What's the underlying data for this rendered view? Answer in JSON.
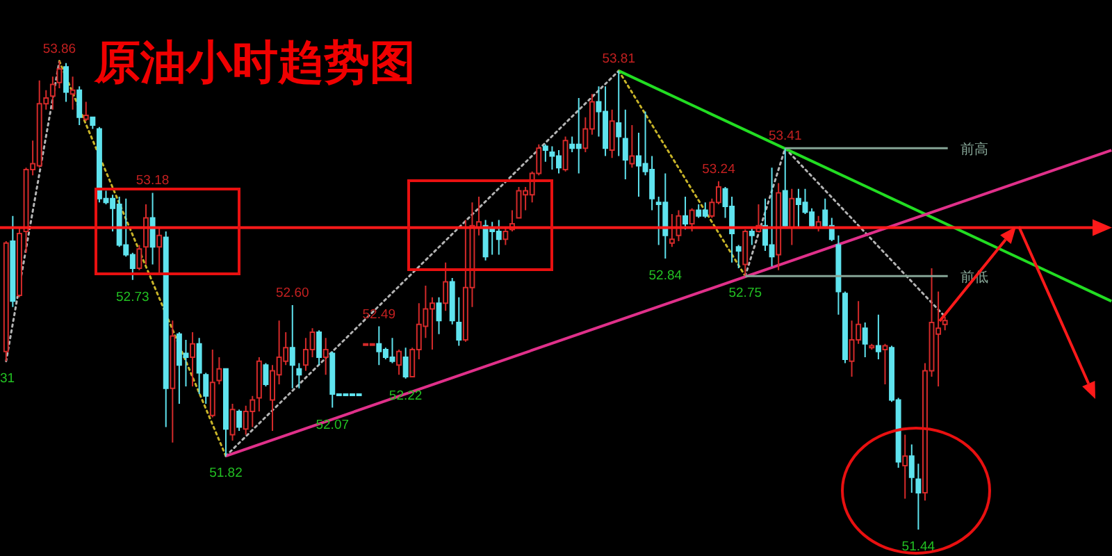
{
  "chart_data": {
    "type": "candlestick",
    "title": "原油小时趋势图",
    "categories": [
      null,
      null,
      null,
      null,
      null,
      null,
      null,
      null,
      null,
      null,
      null,
      null,
      null,
      null,
      null,
      null,
      null,
      null,
      null,
      null,
      null,
      null,
      null,
      null,
      null,
      null,
      null,
      null,
      null,
      null,
      null,
      null,
      null,
      null,
      null,
      null,
      null,
      null,
      null,
      null,
      null,
      null,
      null,
      null,
      null,
      null,
      null,
      null,
      null,
      null,
      null,
      null,
      null,
      null,
      null,
      null,
      null,
      null,
      null,
      null,
      null,
      null,
      null,
      null,
      null,
      null,
      null,
      null,
      null,
      null,
      null,
      null,
      null,
      null,
      null,
      null,
      null,
      null,
      null,
      null,
      null,
      null,
      null,
      null,
      null,
      null,
      null,
      null,
      null,
      null,
      null,
      null,
      null,
      null,
      null,
      null,
      null,
      null,
      null,
      null,
      null,
      null,
      null,
      null,
      null,
      null,
      null,
      null,
      null,
      null,
      null,
      null,
      null,
      null,
      null,
      null,
      null,
      null,
      null,
      null,
      null,
      null,
      null,
      null,
      null,
      null,
      null,
      null,
      null,
      null,
      null,
      null,
      null,
      null,
      null,
      null,
      null,
      null,
      null,
      null,
      null,
      null,
      null,
      null,
      null,
      null,
      null,
      null,
      null,
      null,
      null,
      null,
      null,
      null,
      null,
      null,
      null,
      null,
      null,
      null,
      null,
      null,
      null,
      null,
      null,
      null,
      null
    ],
    "ohlc": [
      [
        52.36,
        52.93,
        52.31,
        52.92
      ],
      [
        52.93,
        53.06,
        52.59,
        52.62
      ],
      [
        52.65,
        53.0,
        52.64,
        52.97
      ],
      [
        52.98,
        53.31,
        52.87,
        53.3
      ],
      [
        53.3,
        53.45,
        53.27,
        53.33
      ],
      [
        53.32,
        53.76,
        53.31,
        53.64
      ],
      [
        53.64,
        53.71,
        53.61,
        53.67
      ],
      [
        53.68,
        53.78,
        53.61,
        53.74
      ],
      [
        53.75,
        53.86,
        53.72,
        53.82
      ],
      [
        53.83,
        53.85,
        53.65,
        53.7
      ],
      [
        53.69,
        53.78,
        53.61,
        53.71
      ],
      [
        53.71,
        53.73,
        53.53,
        53.57
      ],
      [
        53.56,
        53.65,
        53.55,
        53.58
      ],
      [
        53.57,
        53.57,
        53.51,
        53.53
      ],
      [
        53.51,
        53.52,
        53.13,
        53.15
      ],
      [
        53.15,
        53.19,
        53.12,
        53.13
      ],
      [
        53.15,
        53.17,
        52.98,
        53.1
      ],
      [
        53.12,
        53.16,
        52.9,
        52.91
      ],
      [
        52.91,
        53.15,
        52.85,
        52.86
      ],
      [
        52.86,
        52.87,
        52.73,
        52.79
      ],
      [
        52.79,
        52.91,
        52.78,
        52.89
      ],
      [
        52.9,
        53.12,
        52.81,
        53.05
      ],
      [
        53.05,
        53.18,
        52.81,
        52.9
      ],
      [
        52.9,
        53.0,
        52.76,
        52.96
      ],
      [
        52.95,
        52.98,
        51.97,
        52.17
      ],
      [
        52.17,
        52.52,
        51.89,
        52.44
      ],
      [
        52.45,
        52.46,
        52.09,
        52.29
      ],
      [
        52.35,
        52.42,
        52.18,
        52.33
      ],
      [
        52.33,
        52.46,
        52.18,
        52.4
      ],
      [
        52.4,
        52.43,
        52.14,
        52.25
      ],
      [
        52.24,
        52.25,
        52.09,
        52.13
      ],
      [
        52.03,
        52.37,
        52.02,
        52.2
      ],
      [
        52.21,
        52.33,
        52.19,
        52.27
      ],
      [
        52.27,
        52.27,
        51.82,
        51.96
      ],
      [
        51.93,
        52.09,
        51.9,
        52.06
      ],
      [
        52.05,
        52.06,
        51.95,
        51.97
      ],
      [
        51.96,
        52.08,
        51.93,
        52.05
      ],
      [
        52.05,
        52.13,
        51.97,
        52.11
      ],
      [
        52.12,
        52.33,
        52.05,
        52.31
      ],
      [
        52.29,
        52.3,
        52.18,
        52.19
      ],
      [
        52.11,
        52.29,
        51.95,
        52.26
      ],
      [
        52.24,
        52.52,
        52.19,
        52.33
      ],
      [
        52.31,
        52.46,
        52.29,
        52.38
      ],
      [
        52.38,
        52.6,
        52.17,
        52.29
      ],
      [
        52.27,
        52.3,
        52.17,
        52.24
      ],
      [
        52.29,
        52.43,
        52.26,
        52.37
      ],
      [
        52.37,
        52.48,
        52.33,
        52.46
      ],
      [
        52.46,
        52.47,
        52.29,
        52.33
      ],
      [
        52.33,
        52.43,
        52.24,
        52.37
      ],
      [
        52.35,
        52.36,
        52.07,
        52.14
      ],
      [
        52.14,
        52.14,
        52.14,
        52.14
      ],
      [
        52.14,
        52.14,
        52.14,
        52.14
      ],
      [
        52.14,
        52.14,
        52.14,
        52.14
      ],
      [
        52.14,
        52.14,
        52.14,
        52.14
      ],
      [
        52.4,
        52.4,
        52.4,
        52.4
      ],
      [
        52.4,
        52.4,
        52.4,
        52.4
      ],
      [
        52.4,
        52.49,
        52.29,
        52.36
      ],
      [
        52.37,
        52.38,
        52.32,
        52.33
      ],
      [
        52.33,
        52.43,
        52.3,
        52.31
      ],
      [
        52.29,
        52.37,
        52.24,
        52.36
      ],
      [
        52.33,
        52.38,
        52.22,
        52.23
      ],
      [
        52.23,
        52.38,
        52.23,
        52.37
      ],
      [
        52.37,
        52.61,
        52.32,
        52.5
      ],
      [
        52.49,
        52.7,
        52.43,
        52.58
      ],
      [
        52.58,
        52.64,
        52.37,
        52.61
      ],
      [
        52.61,
        52.64,
        52.45,
        52.52
      ],
      [
        52.61,
        52.82,
        52.57,
        52.72
      ],
      [
        52.72,
        52.74,
        52.5,
        52.52
      ],
      [
        52.51,
        52.64,
        52.39,
        52.42
      ],
      [
        52.42,
        53.04,
        52.41,
        52.69
      ],
      [
        52.69,
        53.13,
        52.59,
        53.01
      ],
      [
        53.0,
        53.16,
        52.96,
        53.03
      ],
      [
        53.01,
        53.04,
        52.83,
        52.85
      ],
      [
        53.0,
        53.03,
        52.86,
        52.98
      ],
      [
        52.98,
        53.04,
        52.86,
        52.94
      ],
      [
        52.94,
        53.0,
        52.91,
        52.98
      ],
      [
        52.99,
        53.09,
        52.98,
        53.02
      ],
      [
        53.05,
        53.21,
        53.05,
        53.19
      ],
      [
        53.17,
        53.21,
        53.09,
        53.19
      ],
      [
        53.17,
        53.29,
        53.13,
        53.28
      ],
      [
        53.28,
        53.43,
        53.27,
        53.41
      ],
      [
        53.42,
        53.43,
        53.34,
        53.4
      ],
      [
        53.39,
        53.42,
        53.3,
        53.37
      ],
      [
        53.37,
        53.4,
        53.28,
        53.31
      ],
      [
        53.3,
        53.47,
        53.29,
        53.45
      ],
      [
        53.43,
        53.47,
        53.39,
        53.41
      ],
      [
        53.43,
        53.67,
        53.28,
        53.41
      ],
      [
        53.41,
        53.57,
        53.39,
        53.51
      ],
      [
        53.51,
        53.69,
        53.48,
        53.65
      ],
      [
        53.65,
        53.73,
        53.47,
        53.6
      ],
      [
        53.6,
        53.73,
        53.37,
        53.41
      ],
      [
        53.4,
        53.61,
        53.36,
        53.55
      ],
      [
        53.54,
        53.81,
        53.37,
        53.47
      ],
      [
        53.46,
        53.61,
        53.25,
        53.35
      ],
      [
        53.33,
        53.53,
        53.31,
        53.37
      ],
      [
        53.37,
        53.49,
        53.16,
        53.32
      ],
      [
        53.33,
        53.6,
        53.27,
        53.29
      ],
      [
        53.3,
        53.37,
        53.09,
        53.15
      ],
      [
        53.13,
        53.16,
        52.91,
        53.12
      ],
      [
        53.13,
        53.28,
        52.84,
        52.96
      ],
      [
        52.92,
        53.07,
        52.9,
        52.94
      ],
      [
        52.96,
        53.09,
        52.93,
        53.06
      ],
      [
        53.06,
        53.16,
        52.99,
        53.02
      ],
      [
        53.02,
        53.1,
        52.98,
        53.09
      ],
      [
        53.09,
        53.12,
        53.05,
        53.06
      ],
      [
        53.09,
        53.13,
        53.05,
        53.06
      ],
      [
        53.06,
        53.15,
        53.05,
        53.13
      ],
      [
        53.13,
        53.24,
        53.12,
        53.21
      ],
      [
        53.2,
        53.21,
        53.05,
        53.11
      ],
      [
        53.11,
        53.16,
        52.82,
        52.97
      ],
      [
        52.9,
        52.91,
        52.79,
        52.88
      ],
      [
        52.81,
        52.99,
        52.75,
        52.98
      ],
      [
        52.98,
        53.0,
        52.91,
        52.96
      ],
      [
        52.98,
        53.12,
        52.98,
        53.01
      ],
      [
        53.01,
        53.15,
        52.88,
        52.91
      ],
      [
        52.91,
        53.31,
        52.8,
        52.85
      ],
      [
        52.86,
        53.23,
        52.78,
        53.18
      ],
      [
        53.19,
        53.41,
        53.0,
        53.01
      ],
      [
        53.0,
        53.2,
        52.91,
        53.15
      ],
      [
        53.15,
        53.2,
        53.0,
        53.12
      ],
      [
        53.13,
        53.2,
        53.07,
        53.08
      ],
      [
        53.08,
        53.1,
        53.0,
        53.01
      ],
      [
        53.0,
        53.06,
        52.98,
        53.03
      ],
      [
        53.09,
        53.15,
        53.0,
        53.01
      ],
      [
        53.01,
        53.05,
        52.93,
        52.94
      ],
      [
        52.91,
        52.96,
        52.55,
        52.67
      ],
      [
        52.66,
        52.67,
        52.3,
        52.32
      ],
      [
        52.31,
        52.52,
        52.23,
        52.42
      ],
      [
        52.42,
        52.62,
        52.4,
        52.5
      ],
      [
        52.48,
        52.51,
        52.33,
        52.4
      ],
      [
        52.38,
        52.4,
        52.37,
        52.39
      ],
      [
        52.39,
        52.55,
        52.32,
        52.36
      ],
      [
        52.37,
        52.4,
        52.19,
        52.39
      ],
      [
        52.38,
        52.39,
        52.1,
        52.11
      ],
      [
        52.11,
        52.12,
        51.76,
        51.79
      ],
      [
        51.77,
        51.93,
        51.6,
        51.82
      ],
      [
        51.82,
        51.88,
        51.63,
        51.71
      ],
      [
        51.7,
        51.78,
        51.44,
        51.63
      ],
      [
        51.63,
        52.3,
        51.59,
        52.26
      ],
      [
        52.26,
        52.79,
        52.23,
        52.51
      ],
      [
        52.45,
        52.67,
        52.18,
        52.48
      ],
      [
        52.5,
        52.54,
        52.47,
        52.52
      ],
      null,
      null,
      null,
      null,
      null,
      null,
      null,
      null,
      null,
      null,
      null,
      null,
      null,
      null,
      null,
      null,
      null,
      null,
      null,
      null,
      null,
      null,
      null,
      null,
      null
    ],
    "colors": [
      "#d42a2a",
      "#5fe3ee",
      "#d42a2a",
      "#d42a2a",
      "#d42a2a",
      "#d42a2a",
      "#d42a2a",
      "#d42a2a",
      "#d42a2a",
      "#5fe3ee",
      "#d42a2a",
      "#5fe3ee",
      "#d42a2a",
      "#5fe3ee",
      "#5fe3ee",
      "#5fe3ee",
      "#5fe3ee",
      "#5fe3ee",
      "#5fe3ee",
      "#5fe3ee",
      "#d42a2a",
      "#d42a2a",
      "#5fe3ee",
      "#d42a2a",
      "#5fe3ee",
      "#d42a2a",
      "#5fe3ee",
      "#5fe3ee",
      "#d42a2a",
      "#5fe3ee",
      "#5fe3ee",
      "#d42a2a",
      "#d42a2a",
      "#5fe3ee",
      "#d42a2a",
      "#5fe3ee",
      "#d42a2a",
      "#d42a2a",
      "#d42a2a",
      "#5fe3ee",
      "#d42a2a",
      "#d42a2a",
      "#d42a2a",
      "#5fe3ee",
      "#5fe3ee",
      "#d42a2a",
      "#d42a2a",
      "#5fe3ee",
      "#d42a2a",
      "#5fe3ee",
      "#5fe3ee",
      "#5fe3ee",
      "#5fe3ee",
      "#5fe3ee",
      "#d42a2a",
      "#d42a2a",
      "#5fe3ee",
      "#5fe3ee",
      "#5fe3ee",
      "#d42a2a",
      "#5fe3ee",
      "#d42a2a",
      "#d42a2a",
      "#d42a2a",
      "#d42a2a",
      "#5fe3ee",
      "#d42a2a",
      "#5fe3ee",
      "#5fe3ee",
      "#d42a2a",
      "#d42a2a",
      "#d42a2a",
      "#5fe3ee",
      "#5fe3ee",
      "#5fe3ee",
      "#d42a2a",
      "#d42a2a",
      "#d42a2a",
      "#d42a2a",
      "#d42a2a",
      "#d42a2a",
      "#5fe3ee",
      "#5fe3ee",
      "#5fe3ee",
      "#d42a2a",
      "#5fe3ee",
      "#5fe3ee",
      "#d42a2a",
      "#d42a2a",
      "#5fe3ee",
      "#5fe3ee",
      "#d42a2a",
      "#5fe3ee",
      "#5fe3ee",
      "#d42a2a",
      "#5fe3ee",
      "#5fe3ee",
      "#5fe3ee",
      "#5fe3ee",
      "#5fe3ee",
      "#d42a2a",
      "#d42a2a",
      "#5fe3ee",
      "#d42a2a",
      "#5fe3ee",
      "#5fe3ee",
      "#d42a2a",
      "#d42a2a",
      "#5fe3ee",
      "#5fe3ee",
      "#5fe3ee",
      "#d42a2a",
      "#5fe3ee",
      "#d42a2a",
      "#5fe3ee",
      "#5fe3ee",
      "#d42a2a",
      "#5fe3ee",
      "#d42a2a",
      "#5fe3ee",
      "#5fe3ee",
      "#5fe3ee",
      "#d42a2a",
      "#5fe3ee",
      "#5fe3ee",
      "#5fe3ee",
      "#5fe3ee",
      "#d42a2a",
      "#d42a2a",
      "#5fe3ee",
      "#d42a2a",
      "#5fe3ee",
      "#d42a2a",
      "#5fe3ee",
      "#5fe3ee",
      "#d42a2a",
      "#5fe3ee",
      "#5fe3ee",
      "#d42a2a",
      "#d42a2a",
      "#d42a2a",
      "#d42a2a",
      null,
      null,
      null,
      null,
      null,
      null,
      null,
      null,
      null,
      null,
      null,
      null,
      null,
      null,
      null,
      null,
      null,
      null,
      null,
      null,
      null,
      null,
      null,
      null,
      null
    ],
    "series": [
      {
        "type": "line",
        "color": "#b4b4b4",
        "line_style": "dotted",
        "values": [
          52.31,
          null,
          null,
          null,
          null,
          null,
          null,
          null,
          53.86,
          null,
          null,
          null,
          null,
          null,
          null,
          null,
          null,
          null,
          null,
          null,
          null,
          null,
          null,
          null,
          null,
          null,
          null,
          null,
          null,
          null,
          null,
          null,
          null,
          null,
          null,
          null,
          null,
          null,
          null,
          null,
          null,
          null,
          null,
          null,
          null,
          null,
          null,
          null,
          null,
          null,
          null,
          null,
          null,
          null,
          null,
          null,
          null,
          null,
          null,
          null,
          null,
          null,
          null,
          null,
          null,
          null,
          null,
          null,
          null,
          null,
          null,
          null,
          null,
          null,
          null,
          null,
          null,
          null,
          null,
          null,
          null,
          null,
          null,
          null,
          null,
          null,
          null,
          null,
          null,
          null,
          null,
          null,
          null,
          null,
          null,
          null,
          null,
          null,
          null,
          null,
          null,
          null,
          null,
          null,
          null,
          null,
          null,
          null,
          null,
          null,
          null,
          null,
          null,
          null,
          null,
          null,
          null,
          null,
          null,
          null,
          null,
          null,
          null,
          null,
          null,
          null,
          null,
          null,
          null,
          null,
          null,
          null,
          null,
          null,
          null,
          null,
          null,
          null,
          null,
          null,
          null,
          null,
          null,
          null,
          null,
          null,
          null,
          null,
          null,
          null,
          null,
          null,
          null,
          null,
          null,
          null,
          null,
          null,
          null,
          null,
          null,
          null,
          null,
          null,
          null,
          null,
          null
        ]
      },
      {
        "type": "line",
        "color": "#c8b428",
        "line_style": "dotted",
        "values": [
          null,
          null,
          null,
          null,
          null,
          null,
          null,
          null,
          53.86,
          null,
          null,
          null,
          null,
          null,
          null,
          null,
          null,
          null,
          null,
          null,
          null,
          null,
          null,
          null,
          null,
          null,
          null,
          null,
          null,
          null,
          null,
          null,
          null,
          51.82,
          null,
          null,
          null,
          null,
          null,
          null,
          null,
          null,
          null,
          null,
          null,
          null,
          null,
          null,
          null,
          null,
          null,
          null,
          null,
          null,
          null,
          null,
          null,
          null,
          null,
          null,
          null,
          null,
          null,
          null,
          null,
          null,
          null,
          null,
          null,
          null,
          null,
          null,
          null,
          null,
          null,
          null,
          null,
          null,
          null,
          null,
          null,
          null,
          null,
          null,
          null,
          null,
          null,
          null,
          null,
          null,
          null,
          null,
          null,
          null,
          null,
          null,
          null,
          null,
          null,
          null,
          null,
          null,
          null,
          null,
          null,
          null,
          null,
          null,
          null,
          null,
          null,
          null,
          null,
          null,
          null,
          null,
          null,
          null,
          null,
          null,
          null,
          null,
          null,
          null,
          null,
          null,
          null,
          null,
          null,
          null,
          null,
          null,
          null,
          null,
          null,
          null,
          null,
          null,
          null,
          null,
          null,
          null,
          null,
          null,
          null,
          null,
          null,
          null,
          null,
          null,
          null,
          null,
          null,
          null,
          null,
          null,
          null,
          null,
          null,
          null,
          null,
          null,
          null,
          null,
          null,
          null,
          null
        ]
      },
      {
        "type": "line",
        "color": "#b4b4b4",
        "line_style": "dotted",
        "values": [
          null,
          null,
          null,
          null,
          null,
          null,
          null,
          null,
          null,
          null,
          null,
          null,
          null,
          null,
          null,
          null,
          null,
          null,
          null,
          null,
          null,
          null,
          null,
          null,
          null,
          null,
          null,
          null,
          null,
          null,
          null,
          null,
          null,
          51.82,
          null,
          null,
          null,
          null,
          null,
          null,
          null,
          null,
          null,
          null,
          null,
          null,
          null,
          null,
          null,
          null,
          null,
          null,
          null,
          null,
          null,
          null,
          null,
          null,
          null,
          null,
          null,
          null,
          null,
          null,
          null,
          null,
          null,
          null,
          null,
          null,
          null,
          null,
          null,
          null,
          null,
          null,
          null,
          null,
          null,
          null,
          null,
          null,
          null,
          null,
          null,
          null,
          null,
          null,
          null,
          null,
          null,
          null,
          53.81,
          null,
          null,
          null,
          null,
          null,
          null,
          null,
          null,
          null,
          null,
          null,
          null,
          null,
          null,
          null,
          null,
          null,
          null,
          null,
          null,
          null,
          null,
          null,
          null,
          null,
          null,
          null,
          null,
          null,
          null,
          null,
          null,
          null,
          null,
          null,
          null,
          null,
          null,
          null,
          null,
          null,
          null,
          null,
          null,
          null,
          null,
          null,
          null,
          null,
          null,
          null,
          null,
          null,
          null,
          null,
          null,
          null,
          null,
          null,
          null,
          null,
          null,
          null,
          null,
          null,
          null,
          null,
          null,
          null,
          null,
          null,
          null,
          null,
          null
        ]
      },
      {
        "type": "line",
        "color": "#c8b428",
        "line_style": "dotted",
        "values": [
          null,
          null,
          null,
          null,
          null,
          null,
          null,
          null,
          null,
          null,
          null,
          null,
          null,
          null,
          null,
          null,
          null,
          null,
          null,
          null,
          null,
          null,
          null,
          null,
          null,
          null,
          null,
          null,
          null,
          null,
          null,
          null,
          null,
          null,
          null,
          null,
          null,
          null,
          null,
          null,
          null,
          null,
          null,
          null,
          null,
          null,
          null,
          null,
          null,
          null,
          null,
          null,
          null,
          null,
          null,
          null,
          null,
          null,
          null,
          null,
          null,
          null,
          null,
          null,
          null,
          null,
          null,
          null,
          null,
          null,
          null,
          null,
          null,
          null,
          null,
          null,
          null,
          null,
          null,
          null,
          null,
          null,
          null,
          null,
          null,
          null,
          null,
          null,
          null,
          null,
          null,
          null,
          53.81,
          null,
          null,
          null,
          null,
          null,
          null,
          null,
          null,
          null,
          null,
          null,
          null,
          null,
          null,
          null,
          null,
          null,
          null,
          52.75,
          null,
          null,
          null,
          null,
          null,
          null,
          null,
          null,
          null,
          null,
          null,
          null,
          null,
          null,
          null,
          null,
          null,
          null,
          null,
          null,
          null,
          null,
          null,
          null,
          null,
          null,
          null,
          null,
          null,
          null,
          null,
          null,
          null,
          null,
          null,
          null,
          null,
          null,
          null,
          null,
          null,
          null,
          null,
          null,
          null,
          null,
          null,
          null,
          null,
          null,
          null,
          null,
          null,
          null,
          null
        ]
      },
      {
        "type": "line",
        "color": "#b4b4b4",
        "line_style": "dotted",
        "values": [
          null,
          null,
          null,
          null,
          null,
          null,
          null,
          null,
          null,
          null,
          null,
          null,
          null,
          null,
          null,
          null,
          null,
          null,
          null,
          null,
          null,
          null,
          null,
          null,
          null,
          null,
          null,
          null,
          null,
          null,
          null,
          null,
          null,
          null,
          null,
          null,
          null,
          null,
          null,
          null,
          null,
          null,
          null,
          null,
          null,
          null,
          null,
          null,
          null,
          null,
          null,
          null,
          null,
          null,
          null,
          null,
          null,
          null,
          null,
          null,
          null,
          null,
          null,
          null,
          null,
          null,
          null,
          null,
          null,
          null,
          null,
          null,
          null,
          null,
          null,
          null,
          null,
          null,
          null,
          null,
          null,
          null,
          null,
          null,
          null,
          null,
          null,
          null,
          null,
          null,
          null,
          null,
          null,
          null,
          null,
          null,
          null,
          null,
          null,
          null,
          null,
          null,
          null,
          null,
          null,
          null,
          null,
          null,
          null,
          null,
          null,
          52.75,
          null,
          null,
          null,
          null,
          null,
          53.41,
          null,
          null,
          null,
          null,
          null,
          null,
          null,
          null,
          null,
          null,
          null,
          null,
          null,
          null,
          null,
          null,
          null,
          null,
          null,
          null,
          null,
          null,
          null,
          52.54,
          null,
          null,
          null,
          null,
          null,
          null,
          null,
          null,
          null,
          null,
          null,
          null,
          null,
          null,
          null,
          null,
          null,
          null,
          null,
          null,
          null,
          null,
          null,
          null,
          null
        ]
      },
      {
        "type": "line",
        "color": "#22dd22",
        "line_style": "solid",
        "values": [
          null,
          null,
          null,
          null,
          null,
          null,
          null,
          null,
          null,
          null,
          null,
          null,
          null,
          null,
          null,
          null,
          null,
          null,
          null,
          null,
          null,
          null,
          null,
          null,
          null,
          null,
          null,
          null,
          null,
          null,
          null,
          null,
          null,
          null,
          null,
          null,
          null,
          null,
          null,
          null,
          null,
          null,
          null,
          null,
          null,
          null,
          null,
          null,
          null,
          null,
          null,
          null,
          null,
          null,
          null,
          null,
          null,
          null,
          null,
          null,
          null,
          null,
          null,
          null,
          null,
          null,
          null,
          null,
          null,
          null,
          null,
          null,
          null,
          null,
          null,
          null,
          null,
          null,
          null,
          null,
          null,
          null,
          null,
          null,
          null,
          null,
          null,
          null,
          null,
          null,
          null,
          null,
          53.81,
          null,
          null,
          null,
          null,
          null,
          null,
          null,
          null,
          null,
          null,
          null,
          null,
          null,
          null,
          null,
          null,
          null,
          null,
          null,
          null,
          null,
          null,
          null,
          null,
          null,
          null,
          null,
          null,
          null,
          null,
          null,
          null,
          null,
          null,
          null,
          null,
          null,
          null,
          null,
          null,
          null,
          null,
          null,
          null,
          null,
          null,
          null,
          null,
          null,
          null,
          null,
          null,
          null,
          null,
          null,
          null,
          null,
          null,
          null,
          null,
          null,
          null,
          null,
          null,
          null,
          null,
          null,
          null,
          null,
          null,
          null,
          null,
          null,
          52.62
        ]
      },
      {
        "type": "line",
        "color": "#e0308a",
        "line_style": "solid",
        "values": [
          null,
          null,
          null,
          null,
          null,
          null,
          null,
          null,
          null,
          null,
          null,
          null,
          null,
          null,
          null,
          null,
          null,
          null,
          null,
          null,
          null,
          null,
          null,
          null,
          null,
          null,
          null,
          null,
          null,
          null,
          null,
          null,
          null,
          51.82,
          null,
          null,
          null,
          null,
          null,
          null,
          null,
          null,
          null,
          null,
          null,
          null,
          null,
          null,
          null,
          null,
          null,
          null,
          null,
          null,
          null,
          null,
          null,
          null,
          null,
          null,
          null,
          null,
          null,
          null,
          null,
          null,
          null,
          null,
          null,
          null,
          null,
          null,
          null,
          null,
          null,
          null,
          null,
          null,
          null,
          null,
          null,
          null,
          null,
          null,
          null,
          null,
          null,
          null,
          null,
          null,
          null,
          null,
          null,
          null,
          null,
          null,
          null,
          null,
          null,
          null,
          null,
          null,
          null,
          null,
          null,
          null,
          null,
          null,
          null,
          null,
          null,
          null,
          null,
          null,
          null,
          null,
          null,
          null,
          null,
          null,
          null,
          null,
          null,
          null,
          null,
          null,
          null,
          null,
          null,
          null,
          null,
          null,
          null,
          null,
          null,
          null,
          null,
          null,
          null,
          null,
          null,
          null,
          null,
          null,
          null,
          null,
          null,
          null,
          null,
          null,
          null,
          null,
          null,
          null,
          null,
          null,
          null,
          null,
          null,
          null,
          null,
          null,
          null,
          null,
          null,
          null,
          53.4
        ]
      }
    ],
    "ref_lines": [
      {
        "axis": "y",
        "value": 53.0,
        "color": "#ff1a1a"
      },
      {
        "axis": "y",
        "value": 53.41,
        "label": "前高",
        "color": "#86a596"
      },
      {
        "axis": "y",
        "value": 52.75,
        "label": "前低",
        "color": "#86a596"
      }
    ],
    "annotations": [
      {
        "text": "53.86",
        "y": 53.86
      },
      {
        "text": "53.18",
        "y": 53.18
      },
      {
        "text": "52.60",
        "y": 52.6
      },
      {
        "text": "52.49",
        "y": 52.49
      },
      {
        "text": "53.81",
        "y": 53.81
      },
      {
        "text": "53.24",
        "y": 53.24
      },
      {
        "text": "53.41",
        "y": 53.41
      },
      {
        "text": "31",
        "y": 52.31
      },
      {
        "text": "52.73",
        "y": 52.73
      },
      {
        "text": "51.82",
        "y": 51.82
      },
      {
        "text": "52.07",
        "y": 52.07
      },
      {
        "text": "52.22",
        "y": 52.22
      },
      {
        "text": "52.84",
        "y": 52.84
      },
      {
        "text": "52.75",
        "y": 52.75
      },
      {
        "text": "51.44",
        "y": 51.44
      }
    ]
  }
}
